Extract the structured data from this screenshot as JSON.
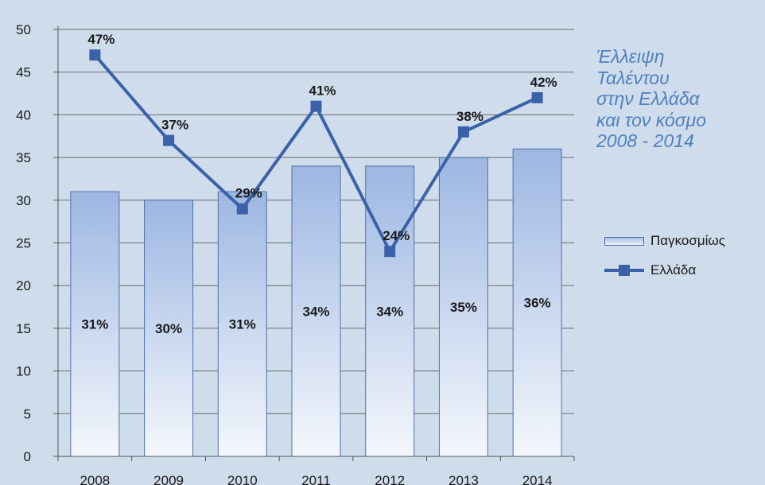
{
  "chart_data": {
    "type": "bar",
    "title_lines": [
      "Έλλειψη",
      "Ταλέντου",
      "στην Ελλάδα",
      "και τον κόσμο",
      "2008 - 2014"
    ],
    "categories": [
      "2008",
      "2009",
      "2010",
      "2011",
      "2012",
      "2013",
      "2014"
    ],
    "y_ticks": [
      "0",
      "5",
      "10",
      "15",
      "20",
      "25",
      "30",
      "35",
      "40",
      "45",
      "50"
    ],
    "ylim": [
      0,
      50
    ],
    "grid": true,
    "legend_position": "right",
    "series": [
      {
        "name": "Παγκοσμίως",
        "type": "bar",
        "values": [
          31,
          30,
          31,
          34,
          34,
          35,
          36
        ],
        "labels": [
          "31%",
          "30%",
          "31%",
          "34%",
          "34%",
          "35%",
          "36%"
        ],
        "color": "#9db7e2"
      },
      {
        "name": "Ελλάδα",
        "type": "line",
        "values": [
          47,
          37,
          29,
          41,
          24,
          38,
          42
        ],
        "labels": [
          "47%",
          "37%",
          "29%",
          "41%",
          "24%",
          "38%",
          "42%"
        ],
        "color": "#3b62a8"
      }
    ]
  }
}
